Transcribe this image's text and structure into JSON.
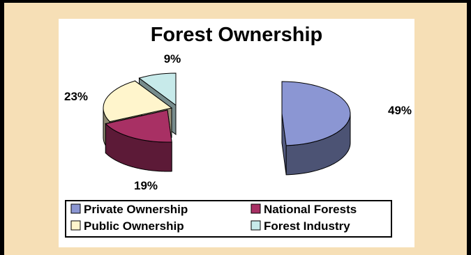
{
  "chart_data": {
    "type": "pie",
    "title": "Forest Ownership",
    "categories": [
      "Private Ownership",
      "National Forests",
      "Public Ownership",
      "Forest Industry"
    ],
    "values": [
      49,
      19,
      23,
      9
    ],
    "data_labels": [
      "49%",
      "19%",
      "23%",
      "9%"
    ],
    "colors": [
      "#8b96d3",
      "#a83064",
      "#fff5cc",
      "#c7eaea"
    ],
    "legend_placement": "bottom",
    "exploded": true,
    "three_d": true
  }
}
